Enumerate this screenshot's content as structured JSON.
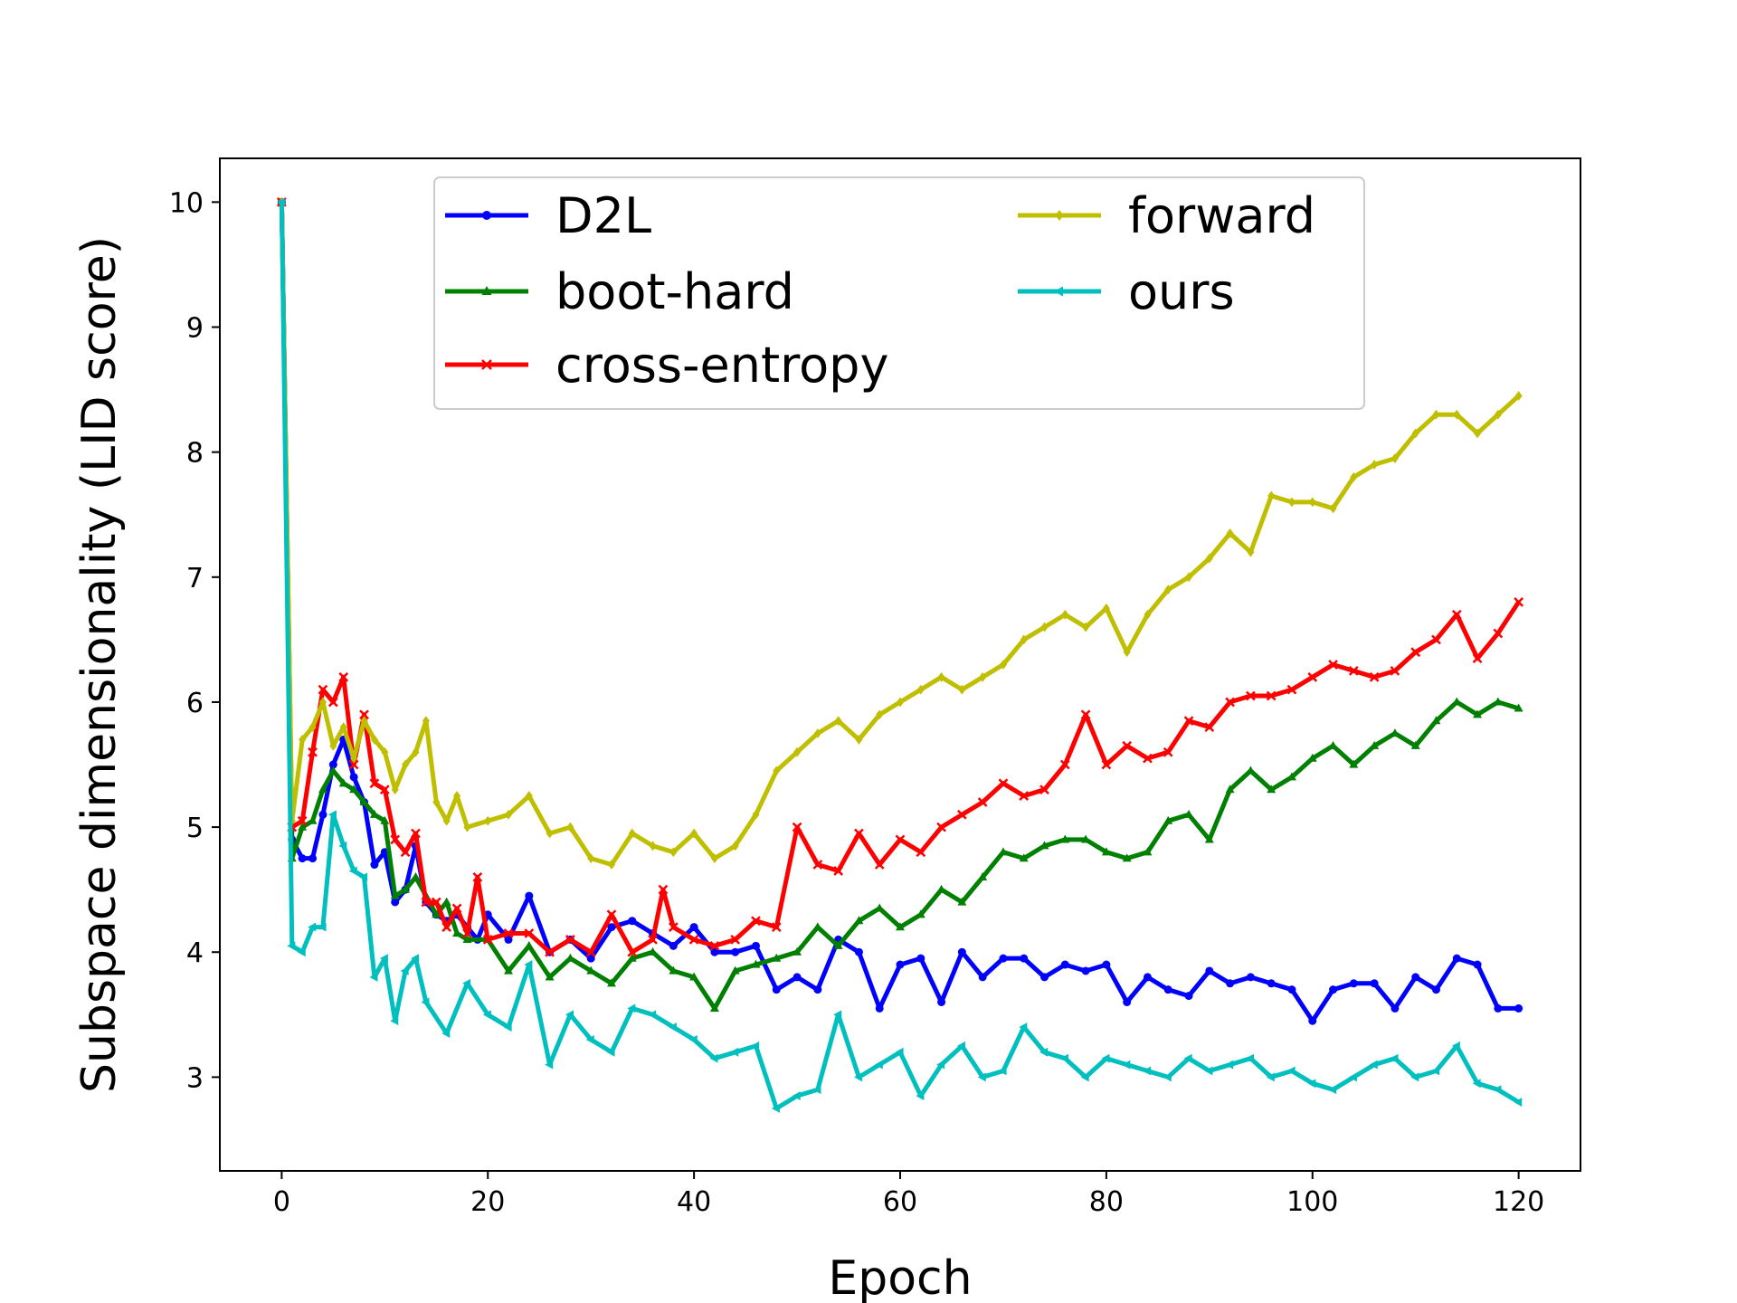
{
  "chart_data": {
    "type": "line",
    "xlabel": "Epoch",
    "ylabel": "Subspace dimensionality (LID score)",
    "xlim": [
      -6,
      126
    ],
    "ylim": [
      2.25,
      10.35
    ],
    "xticks": [
      0,
      20,
      40,
      60,
      80,
      100,
      120
    ],
    "yticks": [
      3,
      4,
      5,
      6,
      7,
      8,
      9,
      10
    ],
    "grid": false,
    "legend_placement": "top-center",
    "legend_columns": 2,
    "series": [
      {
        "name": "D2L",
        "color": "#0000ff",
        "marker": "circle",
        "x": [
          0,
          1,
          2,
          3,
          4,
          5,
          6,
          7,
          8,
          9,
          10,
          11,
          12,
          13,
          14,
          15,
          16,
          17,
          18,
          19,
          20,
          22,
          24,
          26,
          28,
          30,
          32,
          34,
          36,
          38,
          40,
          42,
          44,
          46,
          48,
          50,
          52,
          54,
          56,
          58,
          60,
          62,
          64,
          66,
          68,
          70,
          72,
          74,
          76,
          78,
          80,
          82,
          84,
          86,
          88,
          90,
          92,
          94,
          96,
          98,
          100,
          102,
          104,
          106,
          108,
          110,
          112,
          114,
          116,
          118,
          120
        ],
        "values": [
          10.0,
          4.9,
          4.75,
          4.75,
          5.1,
          5.5,
          5.7,
          5.4,
          5.2,
          4.7,
          4.8,
          4.4,
          4.5,
          4.85,
          4.4,
          4.3,
          4.25,
          4.3,
          4.2,
          4.1,
          4.3,
          4.1,
          4.45,
          4.0,
          4.1,
          3.95,
          4.2,
          4.25,
          4.15,
          4.05,
          4.2,
          4.0,
          4.0,
          4.05,
          3.7,
          3.8,
          3.7,
          4.1,
          4.0,
          3.55,
          3.9,
          3.95,
          3.6,
          4.0,
          3.8,
          3.95,
          3.95,
          3.8,
          3.9,
          3.85,
          3.9,
          3.6,
          3.8,
          3.7,
          3.65,
          3.85,
          3.75,
          3.8,
          3.75,
          3.7,
          3.45,
          3.7,
          3.75,
          3.75,
          3.55,
          3.8,
          3.7,
          3.95,
          3.9,
          3.55,
          3.55
        ]
      },
      {
        "name": "boot-hard",
        "color": "#008000",
        "marker": "triangle-up",
        "x": [
          0,
          1,
          2,
          3,
          4,
          5,
          6,
          7,
          8,
          9,
          10,
          11,
          12,
          13,
          14,
          15,
          16,
          17,
          18,
          20,
          22,
          24,
          26,
          28,
          30,
          32,
          34,
          36,
          38,
          40,
          42,
          44,
          46,
          48,
          50,
          52,
          54,
          56,
          58,
          60,
          62,
          64,
          66,
          68,
          70,
          72,
          74,
          76,
          78,
          80,
          82,
          84,
          86,
          88,
          90,
          92,
          94,
          96,
          98,
          100,
          102,
          104,
          106,
          108,
          110,
          112,
          114,
          116,
          118,
          120
        ],
        "values": [
          10.0,
          4.75,
          5.0,
          5.05,
          5.3,
          5.45,
          5.35,
          5.3,
          5.2,
          5.1,
          5.05,
          4.45,
          4.5,
          4.6,
          4.45,
          4.3,
          4.4,
          4.15,
          4.1,
          4.1,
          3.85,
          4.05,
          3.8,
          3.95,
          3.85,
          3.75,
          3.95,
          4.0,
          3.85,
          3.8,
          3.55,
          3.85,
          3.9,
          3.95,
          4.0,
          4.2,
          4.05,
          4.25,
          4.35,
          4.2,
          4.3,
          4.5,
          4.4,
          4.6,
          4.8,
          4.75,
          4.85,
          4.9,
          4.9,
          4.8,
          4.75,
          4.8,
          5.05,
          5.1,
          4.9,
          5.3,
          5.45,
          5.3,
          5.4,
          5.55,
          5.65,
          5.5,
          5.65,
          5.75,
          5.65,
          5.85,
          6.0,
          5.9,
          6.0,
          5.95
        ]
      },
      {
        "name": "cross-entropy",
        "color": "#ff0000",
        "marker": "x",
        "x": [
          0,
          1,
          2,
          3,
          4,
          5,
          6,
          7,
          8,
          9,
          10,
          11,
          12,
          13,
          14,
          15,
          16,
          17,
          18,
          19,
          20,
          22,
          24,
          26,
          28,
          30,
          32,
          34,
          36,
          37,
          38,
          40,
          42,
          44,
          46,
          48,
          50,
          52,
          54,
          56,
          58,
          60,
          62,
          64,
          66,
          68,
          70,
          72,
          74,
          76,
          78,
          80,
          82,
          84,
          86,
          88,
          90,
          92,
          94,
          96,
          98,
          100,
          102,
          104,
          106,
          108,
          110,
          112,
          114,
          116,
          118,
          120
        ],
        "values": [
          10.0,
          5.0,
          5.05,
          5.6,
          6.1,
          6.0,
          6.2,
          5.5,
          5.9,
          5.35,
          5.3,
          4.9,
          4.8,
          4.95,
          4.4,
          4.4,
          4.2,
          4.35,
          4.15,
          4.6,
          4.1,
          4.15,
          4.15,
          4.0,
          4.1,
          4.0,
          4.3,
          4.0,
          4.1,
          4.5,
          4.2,
          4.1,
          4.05,
          4.1,
          4.25,
          4.2,
          5.0,
          4.7,
          4.65,
          4.95,
          4.7,
          4.9,
          4.8,
          5.0,
          5.1,
          5.2,
          5.35,
          5.25,
          5.3,
          5.5,
          5.9,
          5.5,
          5.65,
          5.55,
          5.6,
          5.85,
          5.8,
          6.0,
          6.05,
          6.05,
          6.1,
          6.2,
          6.3,
          6.25,
          6.2,
          6.25,
          6.4,
          6.5,
          6.7,
          6.35,
          6.55,
          6.8
        ]
      },
      {
        "name": "forward",
        "color": "#bfbf00",
        "marker": "diamond",
        "x": [
          0,
          1,
          2,
          3,
          4,
          5,
          6,
          7,
          8,
          9,
          10,
          11,
          12,
          13,
          14,
          15,
          16,
          17,
          18,
          20,
          22,
          24,
          26,
          28,
          30,
          32,
          34,
          36,
          38,
          40,
          42,
          44,
          46,
          48,
          50,
          52,
          54,
          56,
          58,
          60,
          62,
          64,
          66,
          68,
          70,
          72,
          74,
          76,
          78,
          80,
          82,
          84,
          86,
          88,
          90,
          92,
          94,
          96,
          98,
          100,
          102,
          104,
          106,
          108,
          110,
          112,
          114,
          116,
          118,
          120
        ],
        "values": [
          10.0,
          5.05,
          5.7,
          5.8,
          6.0,
          5.65,
          5.8,
          5.55,
          5.85,
          5.7,
          5.6,
          5.3,
          5.5,
          5.6,
          5.85,
          5.2,
          5.05,
          5.25,
          5.0,
          5.05,
          5.1,
          5.25,
          4.95,
          5.0,
          4.75,
          4.7,
          4.95,
          4.85,
          4.8,
          4.95,
          4.75,
          4.85,
          5.1,
          5.45,
          5.6,
          5.75,
          5.85,
          5.7,
          5.9,
          6.0,
          6.1,
          6.2,
          6.1,
          6.2,
          6.3,
          6.5,
          6.6,
          6.7,
          6.6,
          6.75,
          6.4,
          6.7,
          6.9,
          7.0,
          7.15,
          7.35,
          7.2,
          7.65,
          7.6,
          7.6,
          7.55,
          7.8,
          7.9,
          7.95,
          8.15,
          8.3,
          8.3,
          8.15,
          8.3,
          8.45
        ]
      },
      {
        "name": "ours",
        "color": "#00bfbf",
        "marker": "triangle-left",
        "x": [
          0,
          1,
          2,
          3,
          4,
          5,
          6,
          7,
          8,
          9,
          10,
          11,
          12,
          13,
          14,
          16,
          18,
          20,
          22,
          24,
          26,
          28,
          30,
          32,
          34,
          36,
          38,
          40,
          42,
          44,
          46,
          48,
          50,
          52,
          54,
          56,
          58,
          60,
          62,
          64,
          66,
          68,
          70,
          72,
          74,
          76,
          78,
          80,
          82,
          84,
          86,
          88,
          90,
          92,
          94,
          96,
          98,
          100,
          102,
          104,
          106,
          108,
          110,
          112,
          114,
          116,
          118,
          120
        ],
        "values": [
          10.0,
          4.05,
          4.0,
          4.2,
          4.2,
          5.1,
          4.85,
          4.65,
          4.6,
          3.8,
          3.95,
          3.45,
          3.85,
          3.95,
          3.6,
          3.35,
          3.75,
          3.5,
          3.4,
          3.9,
          3.1,
          3.5,
          3.3,
          3.2,
          3.55,
          3.5,
          3.4,
          3.3,
          3.15,
          3.2,
          3.25,
          2.75,
          2.85,
          2.9,
          3.5,
          3.0,
          3.1,
          3.2,
          2.85,
          3.1,
          3.25,
          3.0,
          3.05,
          3.4,
          3.2,
          3.15,
          3.0,
          3.15,
          3.1,
          3.05,
          3.0,
          3.15,
          3.05,
          3.1,
          3.15,
          3.0,
          3.05,
          2.95,
          2.9,
          3.0,
          3.1,
          3.15,
          3.0,
          3.05,
          3.25,
          2.95,
          2.9,
          2.8
        ]
      }
    ]
  }
}
